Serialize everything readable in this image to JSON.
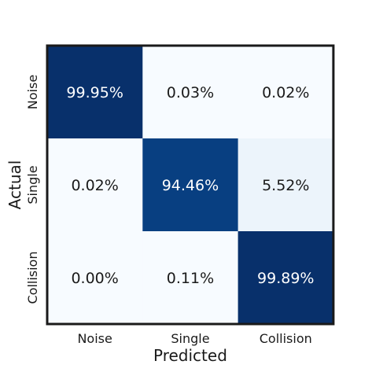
{
  "chart_data": {
    "type": "heatmap",
    "title": "",
    "xlabel": "Predicted",
    "ylabel": "Actual",
    "x_categories": [
      "Noise",
      "Single",
      "Collision"
    ],
    "y_categories": [
      "Noise",
      "Single",
      "Collision"
    ],
    "values": [
      [
        99.95,
        0.03,
        0.02
      ],
      [
        0.02,
        94.46,
        5.52
      ],
      [
        0.0,
        0.11,
        99.89
      ]
    ],
    "value_labels": [
      [
        "99.95%",
        "0.03%",
        "0.02%"
      ],
      [
        "0.02%",
        "94.46%",
        "5.52%"
      ],
      [
        "0.00%",
        "0.11%",
        "99.89%"
      ]
    ],
    "value_range": [
      0,
      100
    ],
    "colormap": "Blues",
    "low_color": "#f7fbff",
    "high_color": "#08306b",
    "light_text_color": "#ffffff",
    "dark_text_color": "#1a1a1a",
    "border_color": "#1a1a1a"
  }
}
